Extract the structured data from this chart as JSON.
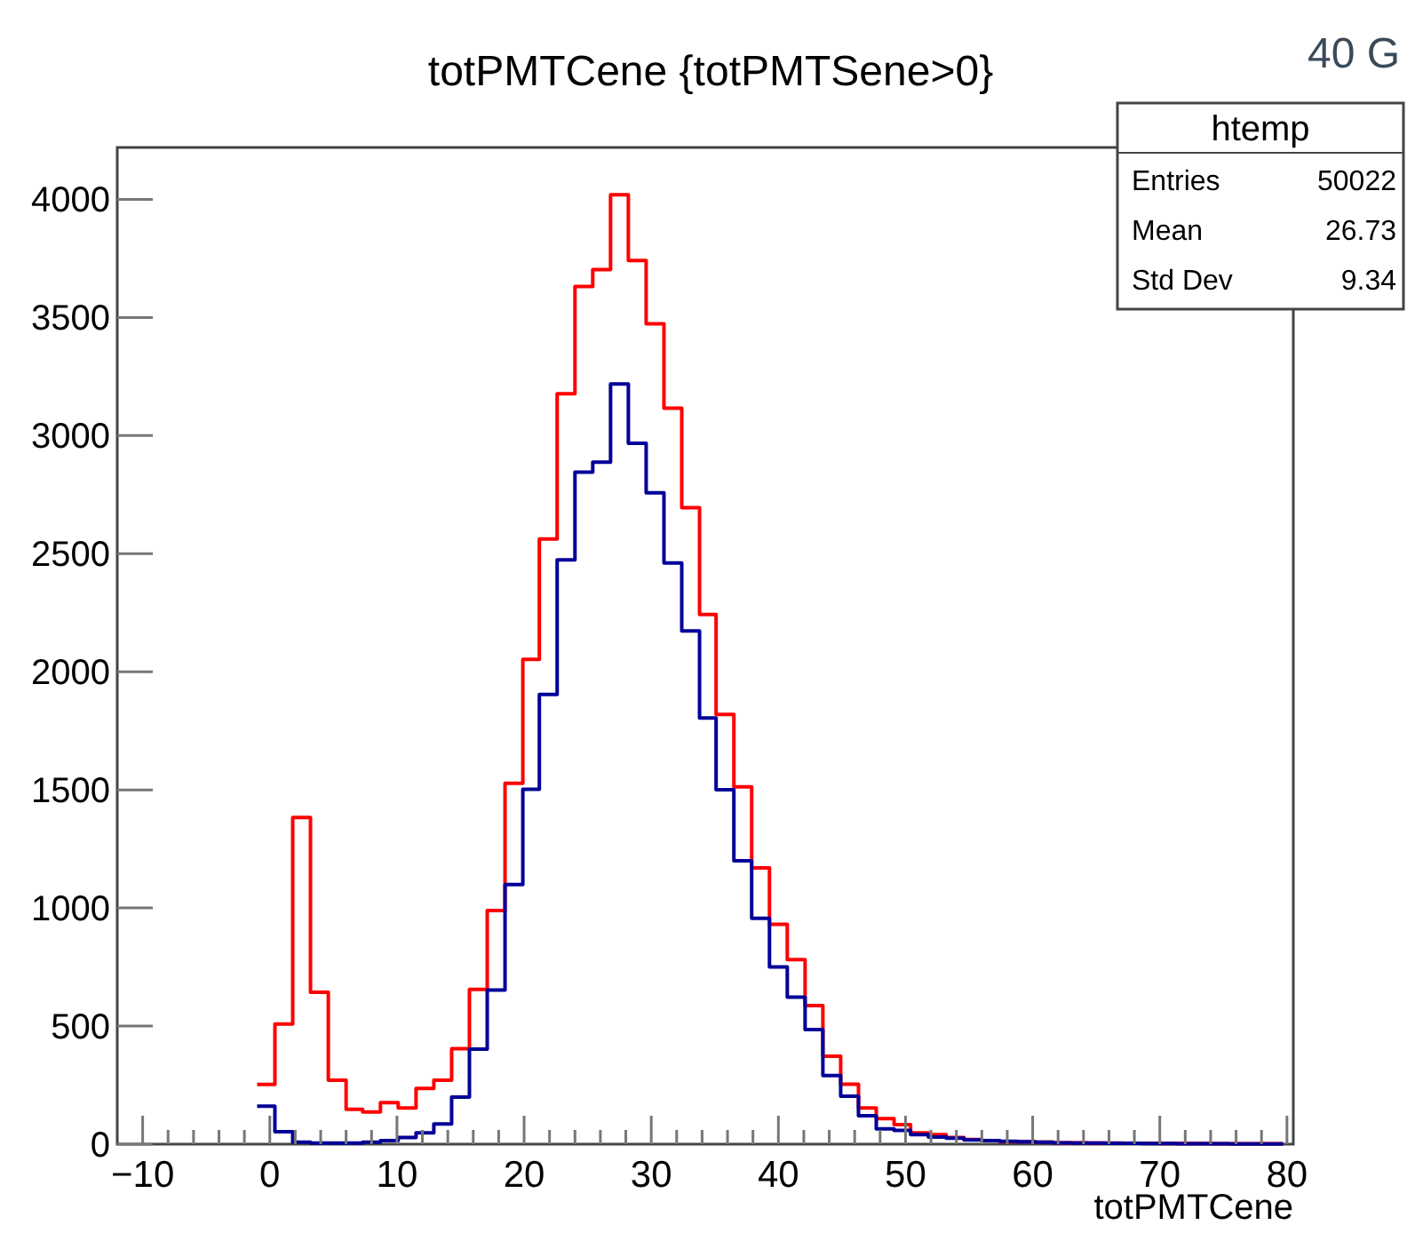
{
  "chart_data": {
    "type": "histogram",
    "title": "totPMTCene {totPMTSene>0}",
    "xlabel": "totPMTCene",
    "bins": [
      -1.0,
      0.4,
      1.8,
      3.2,
      4.6,
      6.0,
      7.3,
      8.7,
      10.1,
      11.5,
      12.9,
      14.3,
      15.7,
      17.1,
      18.5,
      19.9,
      21.2,
      22.6,
      24.0,
      25.4,
      26.8,
      28.2,
      29.6,
      31.0,
      32.4,
      33.8,
      35.1,
      36.5,
      37.9,
      39.3,
      40.7,
      42.1,
      43.5,
      44.9,
      46.3,
      47.7,
      49.1,
      50.4,
      51.8,
      53.2,
      54.6,
      56.0,
      57.4,
      58.8,
      60.2,
      61.6,
      63.0,
      64.3,
      65.7,
      67.1,
      68.5,
      69.9,
      71.3,
      72.7,
      74.1,
      75.5,
      76.9,
      78.3,
      79.7
    ],
    "series": [
      {
        "color": "#ff0000",
        "values": [
          253,
          509,
          1383,
          643,
          271,
          148,
          136,
          176,
          153,
          236,
          271,
          404,
          655,
          989,
          1528,
          2053,
          2562,
          3177,
          3631,
          3703,
          4020,
          3741,
          3473,
          3116,
          2695,
          2243,
          1819,
          1513,
          1170,
          931,
          781,
          587,
          372,
          254,
          153,
          108,
          83,
          48,
          40,
          28,
          20,
          15,
          10,
          10,
          8,
          6,
          6,
          5,
          5,
          4,
          4,
          3,
          3,
          3,
          2,
          2,
          2,
          2
        ]
      },
      {
        "color": "#000099",
        "values": [
          161,
          53,
          8,
          5,
          5,
          5,
          8,
          15,
          28,
          48,
          86,
          199,
          402,
          653,
          1099,
          1503,
          1904,
          2474,
          2845,
          2888,
          3219,
          2968,
          2758,
          2461,
          2173,
          1804,
          1501,
          1200,
          956,
          750,
          622,
          485,
          291,
          203,
          120,
          65,
          58,
          40,
          30,
          25,
          18,
          15,
          12,
          10,
          8,
          6,
          5,
          5,
          4,
          4,
          3,
          3,
          2,
          2,
          2,
          1,
          1,
          1
        ]
      }
    ],
    "xlim": [
      -12,
      80.5
    ],
    "ylim": [
      0,
      4220
    ],
    "xticks": [
      -10,
      {
        "value": -8,
        "label": null
      },
      {
        "value": -6,
        "label": null
      },
      {
        "value": -4,
        "label": null
      },
      {
        "value": -2,
        "label": null
      },
      0,
      {
        "value": 2,
        "label": null
      },
      {
        "value": 4,
        "label": null
      },
      {
        "value": 6,
        "label": null
      },
      {
        "value": 8,
        "label": null
      },
      10,
      {
        "value": 12,
        "label": null
      },
      {
        "value": 14,
        "label": null
      },
      {
        "value": 16,
        "label": null
      },
      {
        "value": 18,
        "label": null
      },
      20,
      {
        "value": 22,
        "label": null
      },
      {
        "value": 24,
        "label": null
      },
      {
        "value": 26,
        "label": null
      },
      {
        "value": 28,
        "label": null
      },
      30,
      {
        "value": 32,
        "label": null
      },
      {
        "value": 34,
        "label": null
      },
      {
        "value": 36,
        "label": null
      },
      {
        "value": 38,
        "label": null
      },
      40,
      {
        "value": 42,
        "label": null
      },
      {
        "value": 44,
        "label": null
      },
      {
        "value": 46,
        "label": null
      },
      {
        "value": 48,
        "label": null
      },
      50,
      {
        "value": 52,
        "label": null
      },
      {
        "value": 54,
        "label": null
      },
      {
        "value": 56,
        "label": null
      },
      {
        "value": 58,
        "label": null
      },
      60,
      {
        "value": 62,
        "label": null
      },
      {
        "value": 64,
        "label": null
      },
      {
        "value": 66,
        "label": null
      },
      {
        "value": 68,
        "label": null
      },
      70,
      {
        "value": 72,
        "label": null
      },
      {
        "value": 74,
        "label": null
      },
      {
        "value": 76,
        "label": null
      },
      {
        "value": 78,
        "label": null
      },
      80
    ],
    "yticks": [
      0,
      500,
      1000,
      1500,
      2000,
      2500,
      3000,
      3500,
      4000
    ],
    "annotations": [
      "htemp",
      "Entries 50022",
      "Mean 26.73",
      "Std Dev 9.34",
      "40 G"
    ]
  }
}
